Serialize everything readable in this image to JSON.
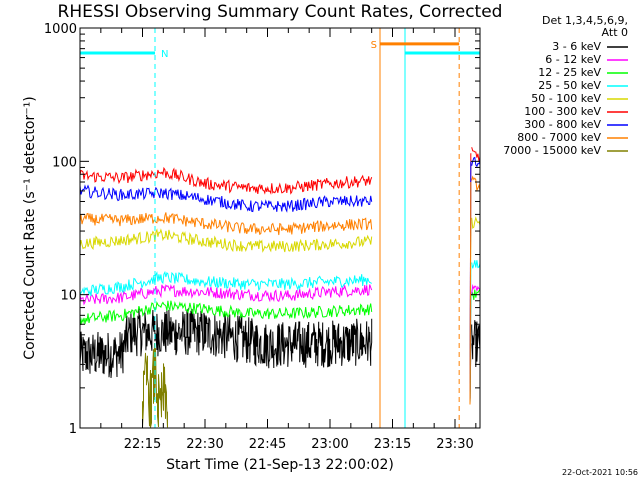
{
  "chart_data": {
    "type": "line",
    "title": "RHESSI Observing Summary Count Rates, Corrected",
    "xlabel": "Start Time (21-Sep-13 22:00:02)",
    "ylabel": "Corrected Count Rate (s⁻¹ detector⁻¹)",
    "yscale": "log",
    "ylim": [
      1,
      1000
    ],
    "xlim_minutes": [
      0,
      96
    ],
    "x_ticks": [
      {
        "t": 15,
        "label": "22:15"
      },
      {
        "t": 30,
        "label": "22:30"
      },
      {
        "t": 45,
        "label": "22:45"
      },
      {
        "t": 60,
        "label": "23:00"
      },
      {
        "t": 75,
        "label": "23:15"
      },
      {
        "t": 90,
        "label": "23:30"
      }
    ],
    "y_ticks": [
      {
        "v": 1,
        "label": "1"
      },
      {
        "v": 10,
        "label": "10"
      },
      {
        "v": 100,
        "label": "100"
      },
      {
        "v": 1000,
        "label": "1000"
      }
    ],
    "legend_header": [
      "Det 1,3,4,5,6,9,",
      "Att 0"
    ],
    "legend_placement": "top-right",
    "series": [
      {
        "name": "3 - 6 keV",
        "color": "#000000",
        "seg1": [
          [
            0,
            3.5
          ],
          [
            10,
            3.6
          ],
          [
            12,
            5.2
          ],
          [
            30,
            5.2
          ],
          [
            45,
            4.2
          ],
          [
            60,
            4.3
          ],
          [
            70,
            4.4
          ]
        ],
        "seg2": [
          [
            94,
            4.3
          ],
          [
            96,
            4.3
          ]
        ]
      },
      {
        "name": "6 - 12 keV",
        "color": "#ff00ff",
        "seg1": [
          [
            0,
            9.0
          ],
          [
            10,
            9.5
          ],
          [
            20,
            10.8
          ],
          [
            30,
            10.5
          ],
          [
            40,
            10.0
          ],
          [
            50,
            9.8
          ],
          [
            60,
            10.5
          ],
          [
            70,
            11.0
          ]
        ],
        "seg2": [
          [
            94,
            10.5
          ],
          [
            96,
            10.5
          ]
        ]
      },
      {
        "name": "12 - 25 keV",
        "color": "#00ff00",
        "seg1": [
          [
            0,
            6.5
          ],
          [
            10,
            7.0
          ],
          [
            20,
            8.3
          ],
          [
            30,
            7.8
          ],
          [
            40,
            7.2
          ],
          [
            50,
            7.2
          ],
          [
            60,
            7.5
          ],
          [
            70,
            7.8
          ]
        ],
        "seg2": [
          [
            94,
            10.0
          ],
          [
            96,
            10.0
          ]
        ]
      },
      {
        "name": "25 - 50 keV",
        "color": "#00ffff",
        "seg1": [
          [
            0,
            10.5
          ],
          [
            10,
            11.5
          ],
          [
            20,
            13.5
          ],
          [
            30,
            12.5
          ],
          [
            40,
            12.0
          ],
          [
            50,
            12.0
          ],
          [
            60,
            12.5
          ],
          [
            70,
            13.0
          ]
        ],
        "seg2": [
          [
            94,
            16.5
          ],
          [
            96,
            16.5
          ]
        ]
      },
      {
        "name": "50 - 100 keV",
        "color": "#d8d800",
        "seg1": [
          [
            0,
            24
          ],
          [
            10,
            25.5
          ],
          [
            20,
            28
          ],
          [
            30,
            25
          ],
          [
            40,
            23
          ],
          [
            50,
            23
          ],
          [
            60,
            24
          ],
          [
            70,
            25
          ]
        ],
        "seg2": [
          [
            94,
            35
          ],
          [
            96,
            35
          ]
        ]
      },
      {
        "name": "100 - 300 keV",
        "color": "#ff0000",
        "seg1": [
          [
            0,
            78
          ],
          [
            10,
            75
          ],
          [
            20,
            83
          ],
          [
            30,
            68
          ],
          [
            40,
            63
          ],
          [
            50,
            63
          ],
          [
            60,
            68
          ],
          [
            70,
            72
          ]
        ],
        "seg2": [
          [
            94,
            115
          ],
          [
            96,
            108
          ]
        ]
      },
      {
        "name": "300 - 800 keV",
        "color": "#0000ff",
        "seg1": [
          [
            0,
            60
          ],
          [
            10,
            56
          ],
          [
            20,
            58
          ],
          [
            30,
            52
          ],
          [
            40,
            46
          ],
          [
            50,
            46
          ],
          [
            60,
            50
          ],
          [
            70,
            50
          ]
        ],
        "seg2": [
          [
            94,
            100
          ],
          [
            96,
            95
          ]
        ]
      },
      {
        "name": "800 - 7000 keV",
        "color": "#ff8000",
        "seg1": [
          [
            0,
            37
          ],
          [
            10,
            36
          ],
          [
            20,
            38
          ],
          [
            30,
            34
          ],
          [
            40,
            31
          ],
          [
            50,
            31
          ],
          [
            60,
            33
          ],
          [
            70,
            34
          ]
        ],
        "seg2": [
          [
            94,
            70
          ],
          [
            96,
            65
          ]
        ]
      },
      {
        "name": "7000 - 15000 keV",
        "color": "#808000",
        "seg1": [
          [
            15,
            1.3
          ],
          [
            16,
            2.5
          ],
          [
            17,
            1.5
          ],
          [
            18,
            2.7
          ],
          [
            19,
            1.2
          ],
          [
            20,
            1.8
          ],
          [
            21,
            1.4
          ]
        ],
        "seg2": []
      }
    ],
    "data_gap_minutes": [
      70.5,
      93.5
    ],
    "flags": [
      {
        "label": "N",
        "color": "#00ffff",
        "t_start": 0,
        "t_end": 18,
        "level": 650
      },
      {
        "label": "S",
        "color": "#ff8000",
        "t_start": 72,
        "t_end": 91,
        "level": 760
      }
    ],
    "markers": [
      {
        "t": 0,
        "color": "#00ffff",
        "style": "solid"
      },
      {
        "t": 18,
        "color": "#00ffff",
        "style": "dashed"
      },
      {
        "t": 72,
        "color": "#ff8000",
        "style": "solid"
      },
      {
        "t": 78,
        "color": "#00ffff",
        "style": "solid"
      },
      {
        "t": 91,
        "color": "#ff8000",
        "style": "dashed"
      },
      {
        "t": 96,
        "color": "#00ffff",
        "style": "dashed"
      }
    ],
    "extra_flag_segment": {
      "color": "#00ffff",
      "t_start": 78,
      "t_end": 96,
      "level": 650
    },
    "footer_date": "22-Oct-2021 10:56"
  }
}
